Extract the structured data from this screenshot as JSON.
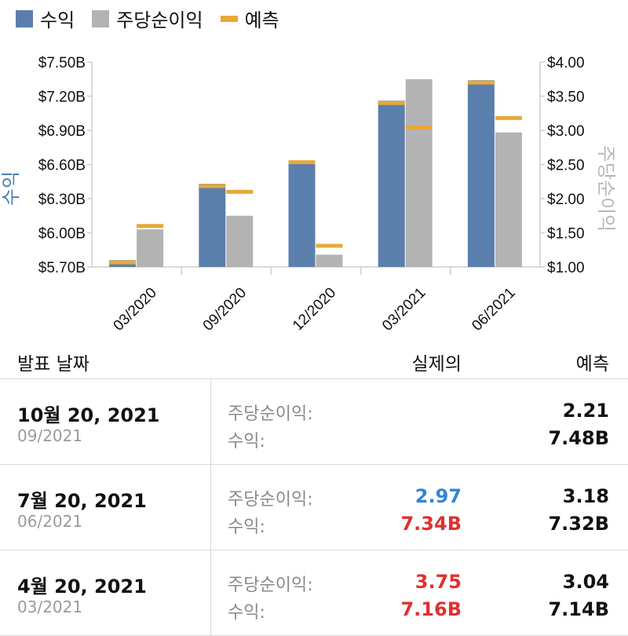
{
  "legend": [
    {
      "label": "수익",
      "color": "#5b7fad",
      "shape": "square"
    },
    {
      "label": "주당순이익",
      "color": "#b3b3b3",
      "shape": "square"
    },
    {
      "label": "예측",
      "color": "#e8a83a",
      "shape": "dash"
    }
  ],
  "chart_data": {
    "type": "bar",
    "categories": [
      "03/2020",
      "09/2020",
      "12/2020",
      "03/2021",
      "06/2021"
    ],
    "ylabel": "수익",
    "y2label": "주당순이익",
    "ylim": [
      5.7,
      7.5
    ],
    "y2lim": [
      1.0,
      4.0
    ],
    "ytick_labels": [
      "$7.50B",
      "$7.20B",
      "$6.90B",
      "$6.60B",
      "$6.30B",
      "$6.00B",
      "$5.70B"
    ],
    "ytick_values": [
      7.5,
      7.2,
      6.9,
      6.6,
      6.3,
      6.0,
      5.7
    ],
    "y2tick_labels": [
      "$4.00",
      "$3.50",
      "$3.00",
      "$2.50",
      "$2.00",
      "$1.50",
      "$1.00"
    ],
    "y2tick_values": [
      4.0,
      3.5,
      3.0,
      2.5,
      2.0,
      1.5,
      1.0
    ],
    "grid": false,
    "series": [
      {
        "name": "수익",
        "axis": "left",
        "color": "#5b7fad",
        "values": [
          5.76,
          6.43,
          6.63,
          7.16,
          7.34
        ]
      },
      {
        "name": "주당순이익",
        "axis": "right",
        "color": "#b3b3b3",
        "values": [
          1.55,
          1.75,
          1.18,
          3.75,
          2.97
        ]
      },
      {
        "name": "수익 예측",
        "axis": "left",
        "color": "#e8a83a",
        "values": [
          5.74,
          6.41,
          6.62,
          7.14,
          7.32
        ]
      },
      {
        "name": "주당순이익 예측",
        "axis": "right",
        "color": "#e8a83a",
        "values": [
          1.6,
          2.1,
          1.31,
          3.04,
          3.18
        ]
      }
    ]
  },
  "table": {
    "headers": {
      "date": "발표 날짜",
      "actual": "실제의",
      "forecast": "예측"
    },
    "rows": [
      {
        "date": "10월 20, 2021",
        "period": "09/2021",
        "eps_label": "주당순이익:",
        "rev_label": "수익:",
        "eps_actual": "",
        "rev_actual": "",
        "eps_actual_color": "#111111",
        "rev_actual_color": "#111111",
        "eps_forecast": "2.21",
        "rev_forecast": "7.48B"
      },
      {
        "date": "7월 20, 2021",
        "period": "06/2021",
        "eps_label": "주당순이익:",
        "rev_label": "수익:",
        "eps_actual": "2.97",
        "rev_actual": "7.34B",
        "eps_actual_color": "#2f86d8",
        "rev_actual_color": "#e03030",
        "eps_forecast": "3.18",
        "rev_forecast": "7.32B"
      },
      {
        "date": "4월 20, 2021",
        "period": "03/2021",
        "eps_label": "주당순이익:",
        "rev_label": "수익:",
        "eps_actual": "3.75",
        "rev_actual": "7.16B",
        "eps_actual_color": "#e03030",
        "rev_actual_color": "#e03030",
        "eps_forecast": "3.04",
        "rev_forecast": "7.14B"
      }
    ]
  }
}
